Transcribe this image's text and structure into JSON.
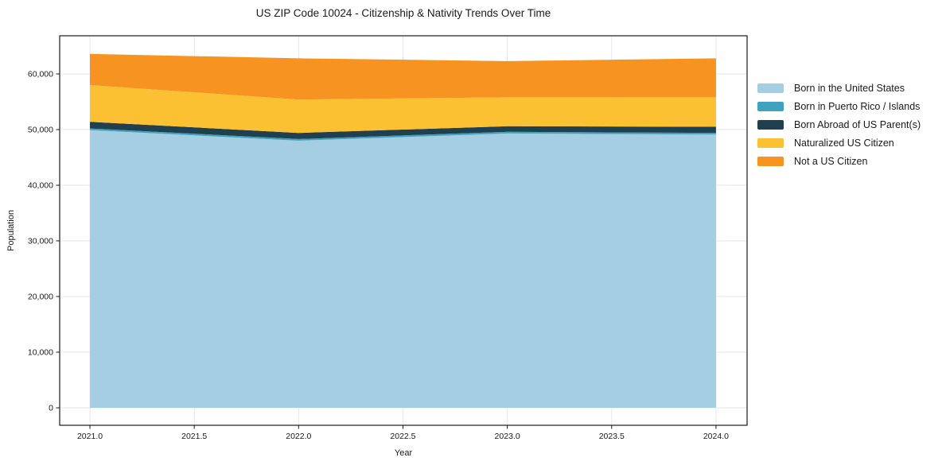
{
  "chart_data": {
    "type": "area",
    "stacked": true,
    "title": "US ZIP Code 10024 - Citizenship & Nativity Trends Over Time",
    "xlabel": "Year",
    "ylabel": "Population",
    "x": [
      2021,
      2022,
      2023,
      2024
    ],
    "series": [
      {
        "name": "Born in the United States",
        "color": "#a6cee3",
        "values": [
          49900,
          48000,
          49300,
          49100
        ]
      },
      {
        "name": "Born in Puerto Rico / Islands",
        "color": "#41a2bf",
        "values": [
          300,
          300,
          300,
          300
        ]
      },
      {
        "name": "Born Abroad of US Parent(s)",
        "color": "#21404f",
        "values": [
          1200,
          1100,
          1000,
          1100
        ]
      },
      {
        "name": "Naturalized US Citizen",
        "color": "#fcc132",
        "values": [
          6600,
          6000,
          5200,
          5300
        ]
      },
      {
        "name": "Not a US Citizen",
        "color": "#f79321",
        "values": [
          5600,
          7400,
          6500,
          7000
        ]
      }
    ],
    "x_ticks": [
      2021.0,
      2021.5,
      2022.0,
      2022.5,
      2023.0,
      2023.5,
      2024.0
    ],
    "x_tick_labels": [
      "2021.0",
      "2021.5",
      "2022.0",
      "2022.5",
      "2023.0",
      "2023.5",
      "2024.0"
    ],
    "y_ticks": [
      0,
      10000,
      20000,
      30000,
      40000,
      50000,
      60000
    ],
    "y_tick_labels": [
      "0",
      "10,000",
      "20,000",
      "30,000",
      "40,000",
      "50,000",
      "60,000"
    ],
    "xlim": [
      2020.855,
      2024.149
    ],
    "ylim": [
      -3143,
      66857
    ],
    "grid": true,
    "legend_position": "right of plot, no frame"
  },
  "style_colors": {
    "grid": "#e7e7e7",
    "spine": "#1a1a1a",
    "tick": "#1a1a1a",
    "tick_label": "#1a1a1a",
    "background": "#ffffff"
  }
}
